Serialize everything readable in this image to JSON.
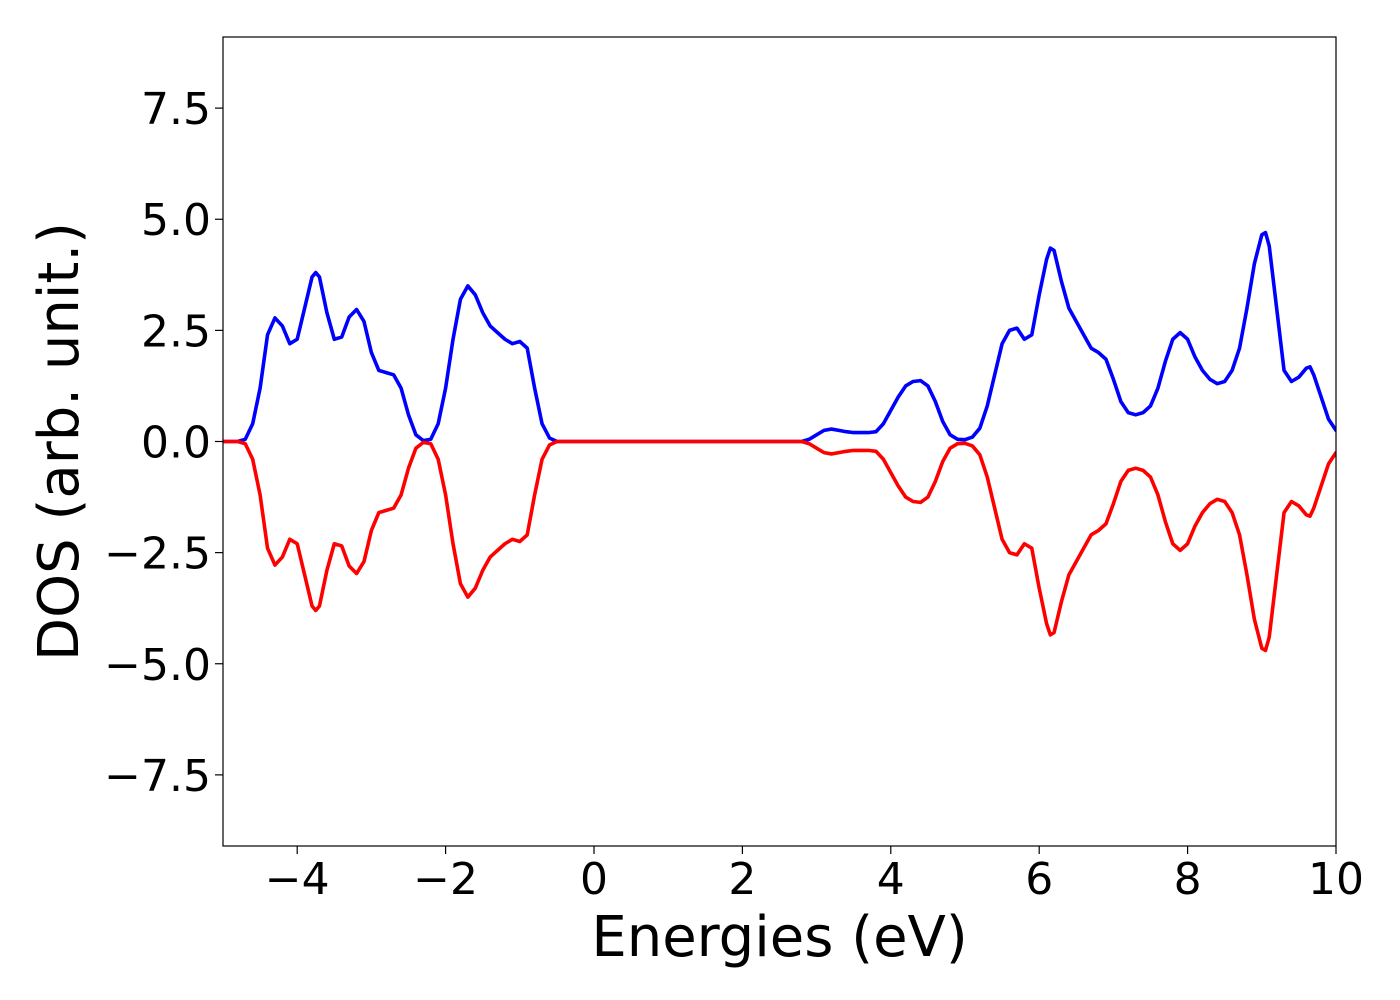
{
  "chart_data": {
    "type": "line",
    "xlabel": "Energies (eV)",
    "ylabel": "DOS (arb. unit.)",
    "xlim": [
      -5,
      10
    ],
    "ylim": [
      -9.1,
      9.1
    ],
    "grid": false,
    "xticks": [
      -4,
      -2,
      0,
      2,
      4,
      6,
      8,
      10
    ],
    "xtick_labels": [
      "−4",
      "−2",
      "0",
      "2",
      "4",
      "6",
      "8",
      "10"
    ],
    "yticks": [
      -7.5,
      -5.0,
      -2.5,
      0.0,
      2.5,
      5.0,
      7.5
    ],
    "ytick_labels": [
      "−7.5",
      "−5.0",
      "−2.5",
      "0.0",
      "2.5",
      "5.0",
      "7.5"
    ],
    "series": [
      {
        "color": "#0000ff",
        "points": [
          [
            -5.0,
            0.0
          ],
          [
            -4.8,
            0.0
          ],
          [
            -4.7,
            0.05
          ],
          [
            -4.6,
            0.4
          ],
          [
            -4.5,
            1.2
          ],
          [
            -4.4,
            2.4
          ],
          [
            -4.3,
            2.78
          ],
          [
            -4.2,
            2.6
          ],
          [
            -4.1,
            2.2
          ],
          [
            -4.0,
            2.3
          ],
          [
            -3.9,
            3.0
          ],
          [
            -3.8,
            3.7
          ],
          [
            -3.75,
            3.8
          ],
          [
            -3.7,
            3.7
          ],
          [
            -3.6,
            2.9
          ],
          [
            -3.5,
            2.3
          ],
          [
            -3.4,
            2.35
          ],
          [
            -3.3,
            2.8
          ],
          [
            -3.2,
            2.97
          ],
          [
            -3.1,
            2.7
          ],
          [
            -3.0,
            2.0
          ],
          [
            -2.9,
            1.6
          ],
          [
            -2.8,
            1.55
          ],
          [
            -2.7,
            1.5
          ],
          [
            -2.6,
            1.2
          ],
          [
            -2.5,
            0.6
          ],
          [
            -2.4,
            0.15
          ],
          [
            -2.3,
            0.02
          ],
          [
            -2.2,
            0.05
          ],
          [
            -2.1,
            0.4
          ],
          [
            -2.0,
            1.2
          ],
          [
            -1.9,
            2.3
          ],
          [
            -1.8,
            3.2
          ],
          [
            -1.7,
            3.5
          ],
          [
            -1.6,
            3.3
          ],
          [
            -1.5,
            2.9
          ],
          [
            -1.4,
            2.6
          ],
          [
            -1.3,
            2.45
          ],
          [
            -1.2,
            2.3
          ],
          [
            -1.1,
            2.2
          ],
          [
            -1.0,
            2.25
          ],
          [
            -0.9,
            2.1
          ],
          [
            -0.8,
            1.2
          ],
          [
            -0.7,
            0.4
          ],
          [
            -0.6,
            0.08
          ],
          [
            -0.5,
            0.0
          ],
          [
            0.0,
            0.0
          ],
          [
            2.8,
            0.0
          ],
          [
            2.9,
            0.05
          ],
          [
            3.0,
            0.15
          ],
          [
            3.1,
            0.25
          ],
          [
            3.2,
            0.28
          ],
          [
            3.3,
            0.25
          ],
          [
            3.4,
            0.22
          ],
          [
            3.5,
            0.2
          ],
          [
            3.6,
            0.2
          ],
          [
            3.7,
            0.2
          ],
          [
            3.8,
            0.22
          ],
          [
            3.9,
            0.4
          ],
          [
            4.0,
            0.7
          ],
          [
            4.1,
            1.0
          ],
          [
            4.2,
            1.25
          ],
          [
            4.3,
            1.35
          ],
          [
            4.4,
            1.37
          ],
          [
            4.5,
            1.25
          ],
          [
            4.6,
            0.9
          ],
          [
            4.7,
            0.45
          ],
          [
            4.8,
            0.15
          ],
          [
            4.9,
            0.05
          ],
          [
            5.0,
            0.04
          ],
          [
            5.1,
            0.1
          ],
          [
            5.2,
            0.3
          ],
          [
            5.3,
            0.8
          ],
          [
            5.4,
            1.5
          ],
          [
            5.5,
            2.2
          ],
          [
            5.6,
            2.5
          ],
          [
            5.7,
            2.55
          ],
          [
            5.8,
            2.3
          ],
          [
            5.9,
            2.4
          ],
          [
            6.0,
            3.3
          ],
          [
            6.1,
            4.1
          ],
          [
            6.15,
            4.35
          ],
          [
            6.2,
            4.3
          ],
          [
            6.3,
            3.6
          ],
          [
            6.4,
            3.0
          ],
          [
            6.5,
            2.7
          ],
          [
            6.6,
            2.4
          ],
          [
            6.7,
            2.1
          ],
          [
            6.8,
            2.0
          ],
          [
            6.9,
            1.85
          ],
          [
            7.0,
            1.4
          ],
          [
            7.1,
            0.9
          ],
          [
            7.2,
            0.65
          ],
          [
            7.3,
            0.6
          ],
          [
            7.4,
            0.65
          ],
          [
            7.5,
            0.8
          ],
          [
            7.6,
            1.2
          ],
          [
            7.7,
            1.8
          ],
          [
            7.8,
            2.3
          ],
          [
            7.9,
            2.45
          ],
          [
            8.0,
            2.3
          ],
          [
            8.1,
            1.9
          ],
          [
            8.2,
            1.6
          ],
          [
            8.3,
            1.4
          ],
          [
            8.4,
            1.3
          ],
          [
            8.5,
            1.35
          ],
          [
            8.6,
            1.6
          ],
          [
            8.7,
            2.1
          ],
          [
            8.8,
            3.0
          ],
          [
            8.9,
            4.0
          ],
          [
            9.0,
            4.65
          ],
          [
            9.05,
            4.7
          ],
          [
            9.1,
            4.4
          ],
          [
            9.2,
            3.0
          ],
          [
            9.3,
            1.6
          ],
          [
            9.4,
            1.35
          ],
          [
            9.5,
            1.45
          ],
          [
            9.6,
            1.65
          ],
          [
            9.65,
            1.68
          ],
          [
            9.7,
            1.5
          ],
          [
            9.8,
            1.0
          ],
          [
            9.9,
            0.5
          ],
          [
            10.0,
            0.25
          ]
        ]
      },
      {
        "color": "#ff0000",
        "points": [
          [
            -5.0,
            0.0
          ],
          [
            -4.8,
            0.0
          ],
          [
            -4.7,
            -0.05
          ],
          [
            -4.6,
            -0.4
          ],
          [
            -4.5,
            -1.2
          ],
          [
            -4.4,
            -2.4
          ],
          [
            -4.3,
            -2.78
          ],
          [
            -4.2,
            -2.6
          ],
          [
            -4.1,
            -2.2
          ],
          [
            -4.0,
            -2.3
          ],
          [
            -3.9,
            -3.0
          ],
          [
            -3.8,
            -3.7
          ],
          [
            -3.75,
            -3.8
          ],
          [
            -3.7,
            -3.7
          ],
          [
            -3.6,
            -2.9
          ],
          [
            -3.5,
            -2.3
          ],
          [
            -3.4,
            -2.35
          ],
          [
            -3.3,
            -2.8
          ],
          [
            -3.2,
            -2.97
          ],
          [
            -3.1,
            -2.7
          ],
          [
            -3.0,
            -2.0
          ],
          [
            -2.9,
            -1.6
          ],
          [
            -2.8,
            -1.55
          ],
          [
            -2.7,
            -1.5
          ],
          [
            -2.6,
            -1.2
          ],
          [
            -2.5,
            -0.6
          ],
          [
            -2.4,
            -0.15
          ],
          [
            -2.3,
            -0.02
          ],
          [
            -2.2,
            -0.05
          ],
          [
            -2.1,
            -0.4
          ],
          [
            -2.0,
            -1.2
          ],
          [
            -1.9,
            -2.3
          ],
          [
            -1.8,
            -3.2
          ],
          [
            -1.7,
            -3.5
          ],
          [
            -1.6,
            -3.3
          ],
          [
            -1.5,
            -2.9
          ],
          [
            -1.4,
            -2.6
          ],
          [
            -1.3,
            -2.45
          ],
          [
            -1.2,
            -2.3
          ],
          [
            -1.1,
            -2.2
          ],
          [
            -1.0,
            -2.25
          ],
          [
            -0.9,
            -2.1
          ],
          [
            -0.8,
            -1.2
          ],
          [
            -0.7,
            -0.4
          ],
          [
            -0.6,
            -0.08
          ],
          [
            -0.5,
            0.0
          ],
          [
            0.0,
            0.0
          ],
          [
            2.8,
            0.0
          ],
          [
            2.9,
            -0.05
          ],
          [
            3.0,
            -0.15
          ],
          [
            3.1,
            -0.25
          ],
          [
            3.2,
            -0.28
          ],
          [
            3.3,
            -0.25
          ],
          [
            3.4,
            -0.22
          ],
          [
            3.5,
            -0.2
          ],
          [
            3.6,
            -0.2
          ],
          [
            3.7,
            -0.2
          ],
          [
            3.8,
            -0.22
          ],
          [
            3.9,
            -0.4
          ],
          [
            4.0,
            -0.7
          ],
          [
            4.1,
            -1.0
          ],
          [
            4.2,
            -1.25
          ],
          [
            4.3,
            -1.35
          ],
          [
            4.4,
            -1.37
          ],
          [
            4.5,
            -1.25
          ],
          [
            4.6,
            -0.9
          ],
          [
            4.7,
            -0.45
          ],
          [
            4.8,
            -0.15
          ],
          [
            4.9,
            -0.05
          ],
          [
            5.0,
            -0.04
          ],
          [
            5.1,
            -0.1
          ],
          [
            5.2,
            -0.3
          ],
          [
            5.3,
            -0.8
          ],
          [
            5.4,
            -1.5
          ],
          [
            5.5,
            -2.2
          ],
          [
            5.6,
            -2.5
          ],
          [
            5.7,
            -2.55
          ],
          [
            5.8,
            -2.3
          ],
          [
            5.9,
            -2.4
          ],
          [
            6.0,
            -3.3
          ],
          [
            6.1,
            -4.1
          ],
          [
            6.15,
            -4.35
          ],
          [
            6.2,
            -4.3
          ],
          [
            6.3,
            -3.6
          ],
          [
            6.4,
            -3.0
          ],
          [
            6.5,
            -2.7
          ],
          [
            6.6,
            -2.4
          ],
          [
            6.7,
            -2.1
          ],
          [
            6.8,
            -2.0
          ],
          [
            6.9,
            -1.85
          ],
          [
            7.0,
            -1.4
          ],
          [
            7.1,
            -0.9
          ],
          [
            7.2,
            -0.65
          ],
          [
            7.3,
            -0.6
          ],
          [
            7.4,
            -0.65
          ],
          [
            7.5,
            -0.8
          ],
          [
            7.6,
            -1.2
          ],
          [
            7.7,
            -1.8
          ],
          [
            7.8,
            -2.3
          ],
          [
            7.9,
            -2.45
          ],
          [
            8.0,
            -2.3
          ],
          [
            8.1,
            -1.9
          ],
          [
            8.2,
            -1.6
          ],
          [
            8.3,
            -1.4
          ],
          [
            8.4,
            -1.3
          ],
          [
            8.5,
            -1.35
          ],
          [
            8.6,
            -1.6
          ],
          [
            8.7,
            -2.1
          ],
          [
            8.8,
            -3.0
          ],
          [
            8.9,
            -4.0
          ],
          [
            9.0,
            -4.65
          ],
          [
            9.05,
            -4.7
          ],
          [
            9.1,
            -4.4
          ],
          [
            9.2,
            -3.0
          ],
          [
            9.3,
            -1.6
          ],
          [
            9.4,
            -1.35
          ],
          [
            9.5,
            -1.45
          ],
          [
            9.6,
            -1.65
          ],
          [
            9.65,
            -1.68
          ],
          [
            9.7,
            -1.5
          ],
          [
            9.8,
            -1.0
          ],
          [
            9.9,
            -0.5
          ],
          [
            10.0,
            -0.25
          ]
        ]
      }
    ]
  }
}
